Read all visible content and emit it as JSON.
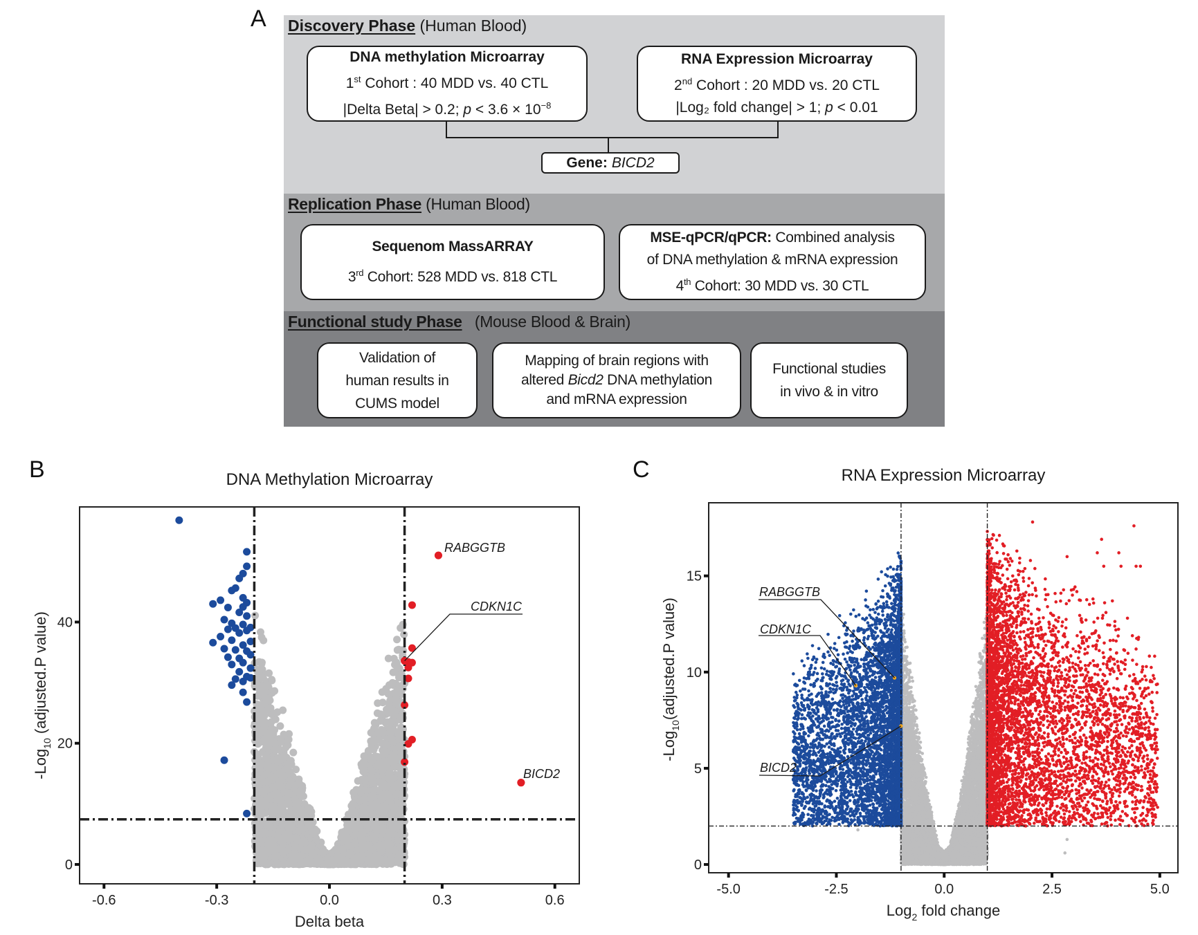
{
  "panel_labels": {
    "a": "A",
    "b": "B",
    "c": "C"
  },
  "flowchart": {
    "discovery": {
      "title": "Discovery Phase",
      "subtitle": "(Human Blood)",
      "methylation_box": {
        "title": "DNA methylation Microarray",
        "cohort_ordinal": "1",
        "cohort_sup": "st",
        "cohort_text": " Cohort : 40 MDD vs. 40 CTL",
        "criteria_prefix": "|Delta Beta| > 0.2; ",
        "criteria_p": "p",
        "criteria_suffix": " < 3.6 × 10",
        "criteria_exp": "−8"
      },
      "rna_box": {
        "title": "RNA Expression Microarray",
        "cohort_ordinal": "2",
        "cohort_sup": "nd",
        "cohort_text": " Cohort : 20 MDD vs. 20 CTL",
        "criteria_prefix": "|Log₂ fold change| > 1; ",
        "criteria_p": "p",
        "criteria_suffix": " < 0.01"
      },
      "gene_label": "Gene:",
      "gene_name": "BICD2"
    },
    "replication": {
      "title": "Replication Phase",
      "subtitle": "(Human Blood)",
      "sequenom_box": {
        "title": "Sequenom MassARRAY",
        "cohort_ordinal": "3",
        "cohort_sup": "rd",
        "cohort_text": " Cohort: 528 MDD vs. 818 CTL"
      },
      "qpcr_box": {
        "title": "MSE-qPCR/qPCR:",
        "line1_rest": " Combined analysis",
        "line2": "of DNA methylation & mRNA expression",
        "cohort_ordinal": "4",
        "cohort_sup": "th",
        "cohort_text": " Cohort: 30 MDD vs. 30 CTL"
      }
    },
    "functional": {
      "title": "Functional study Phase",
      "subtitle": "(Mouse Blood & Brain)",
      "boxes": [
        {
          "lines": [
            "Validation of",
            "human results in",
            "CUMS model"
          ]
        },
        {
          "line1": "Mapping of brain regions with",
          "line2_pre": "altered ",
          "line2_gene": "Bicd2",
          "line2_post": " DNA methylation",
          "line3": "and mRNA expression"
        },
        {
          "lines": [
            "Functional studies",
            "in vivo & in vitro"
          ]
        }
      ]
    }
  },
  "chart_data": [
    {
      "id": "B",
      "type": "scatter",
      "title": "DNA Methylation Microarray",
      "xlabel": "Delta beta",
      "ylabel_prefix": "-Log",
      "ylabel_sub": "10",
      "ylabel_suffix": " (adjusted.P value)",
      "xlim": [
        -0.665,
        0.665
      ],
      "ylim": [
        -3.2,
        59
      ],
      "xticks": [
        -0.6,
        -0.3,
        0.0,
        0.3,
        0.6
      ],
      "xtick_labels": [
        "-0.6",
        "-0.3",
        "0.0",
        "0.3",
        "0.6"
      ],
      "yticks": [
        0,
        20,
        40
      ],
      "ytick_labels": [
        "0",
        "20",
        "40"
      ],
      "thresholds": {
        "x": [
          -0.2,
          0.2
        ],
        "y": 7.44
      },
      "grid": false,
      "colors": {
        "down": "#1c4b9c",
        "up": "#e21e25",
        "ns": "#bdbdbe",
        "highlight": "#e21e25"
      },
      "background_cloud": {
        "shape": "volcano",
        "x_spread": 0.2,
        "y_max": 46,
        "density": "very high"
      },
      "series": [
        {
          "name": "hypomethylated",
          "color": "#1c4b9c",
          "points": [
            [
              -0.4,
              56.8
            ],
            [
              -0.22,
              51.6
            ],
            [
              -0.22,
              49.2
            ],
            [
              -0.23,
              48.0
            ],
            [
              -0.24,
              47.2
            ],
            [
              -0.25,
              45.6
            ],
            [
              -0.26,
              45.2
            ],
            [
              -0.23,
              44.0
            ],
            [
              -0.22,
              43.2
            ],
            [
              -0.31,
              43.0
            ],
            [
              -0.29,
              43.6
            ],
            [
              -0.27,
              42.4
            ],
            [
              -0.23,
              42.5
            ],
            [
              -0.24,
              41.6
            ],
            [
              -0.22,
              41.0
            ],
            [
              -0.28,
              40.4
            ],
            [
              -0.26,
              39.8
            ],
            [
              -0.25,
              39.0
            ],
            [
              -0.23,
              39.6
            ],
            [
              -0.21,
              39.1
            ],
            [
              -0.27,
              38.8
            ],
            [
              -0.24,
              38.2
            ],
            [
              -0.22,
              38.6
            ],
            [
              -0.29,
              37.6
            ],
            [
              -0.26,
              37.0
            ],
            [
              -0.23,
              36.2
            ],
            [
              -0.21,
              36.8
            ],
            [
              -0.31,
              36.6
            ],
            [
              -0.28,
              35.6
            ],
            [
              -0.25,
              35.4
            ],
            [
              -0.22,
              35.2
            ],
            [
              -0.27,
              34.2
            ],
            [
              -0.24,
              34.0
            ],
            [
              -0.21,
              34.6
            ],
            [
              -0.26,
              33.0
            ],
            [
              -0.23,
              33.3
            ],
            [
              -0.21,
              32.4
            ],
            [
              -0.24,
              31.8
            ],
            [
              -0.22,
              31.0
            ],
            [
              -0.25,
              30.6
            ],
            [
              -0.23,
              30.2
            ],
            [
              -0.21,
              30.8
            ],
            [
              -0.26,
              29.6
            ],
            [
              -0.23,
              28.4
            ],
            [
              -0.22,
              26.8
            ],
            [
              -0.28,
              17.2
            ],
            [
              -0.22,
              8.4
            ]
          ]
        },
        {
          "name": "hypermethylated",
          "color": "#e21e25",
          "points": [
            [
              0.29,
              51.0
            ],
            [
              0.22,
              42.8
            ],
            [
              0.22,
              35.7
            ],
            [
              0.2,
              33.6
            ],
            [
              0.21,
              33.4
            ],
            [
              0.22,
              33.3
            ],
            [
              0.21,
              32.5
            ],
            [
              0.21,
              30.7
            ],
            [
              0.2,
              26.3
            ],
            [
              0.22,
              20.6
            ],
            [
              0.21,
              19.9
            ],
            [
              0.2,
              16.9
            ],
            [
              0.51,
              13.5
            ]
          ]
        }
      ],
      "annotations": [
        {
          "label": "RABGGTB",
          "x": 0.29,
          "y": 51.0,
          "leader": false
        },
        {
          "label": "CDKN1C",
          "x": 0.2,
          "y": 33.6,
          "leader": true
        },
        {
          "label": "BICD2",
          "x": 0.51,
          "y": 13.5,
          "leader": false
        }
      ]
    },
    {
      "id": "C",
      "type": "scatter",
      "title": "RNA Expression Microarray",
      "xlabel_prefix": "Log",
      "xlabel_sub": "2",
      "xlabel_suffix": " fold change",
      "ylabel_prefix": "-Log",
      "ylabel_sub": "10",
      "ylabel_suffix": "(adjusted.P value)",
      "xlim": [
        -5.46,
        5.42
      ],
      "ylim": [
        -0.43,
        18.8
      ],
      "xticks": [
        -5.0,
        -2.5,
        0.0,
        2.5,
        5.0
      ],
      "xtick_labels": [
        "-5.0",
        "-2.5",
        "0.0",
        "2.5",
        "5.0"
      ],
      "yticks": [
        0,
        5,
        10,
        15
      ],
      "ytick_labels": [
        "0",
        "5",
        "10",
        "15"
      ],
      "thresholds": {
        "x": [
          -1,
          1
        ],
        "y": 2
      },
      "grid": false,
      "colors": {
        "down": "#1c4b9c",
        "up": "#e21e25",
        "ns": "#bdbdbe",
        "highlight": "#f5a81c"
      },
      "background_cloud": {
        "shape": "volcano",
        "x_spread": 1.0,
        "y_max": 14.5,
        "density": "very high"
      },
      "series": [
        {
          "name": "down-regulated",
          "color": "#1c4b9c",
          "x_range": [
            -3.5,
            -1.0
          ],
          "y_range": [
            2.0,
            16.5
          ],
          "density": "very high"
        },
        {
          "name": "up-regulated",
          "color": "#e21e25",
          "x_range": [
            1.0,
            4.95
          ],
          "y_range": [
            2.0,
            17.8
          ],
          "density": "high"
        },
        {
          "name": "up-regulated outliers",
          "color": "#e21e25",
          "points": [
            [
              2.05,
              17.8
            ],
            [
              4.4,
              17.6
            ],
            [
              3.65,
              16.9
            ],
            [
              4.05,
              16.2
            ],
            [
              2.85,
              16.0
            ],
            [
              3.55,
              16.2
            ],
            [
              2.0,
              15.8
            ],
            [
              3.7,
              15.5
            ],
            [
              4.1,
              15.5
            ],
            [
              4.45,
              15.5
            ],
            [
              4.55,
              15.5
            ],
            [
              3.0,
              14.3
            ],
            [
              3.45,
              13.8
            ],
            [
              3.72,
              13.6
            ],
            [
              3.9,
              13.7
            ],
            [
              3.2,
              12.6
            ],
            [
              3.56,
              12.8
            ],
            [
              3.67,
              12.8
            ],
            [
              4.25,
              12.8
            ],
            [
              2.65,
              12.1
            ],
            [
              3.6,
              11.8
            ],
            [
              3.2,
              11.5
            ],
            [
              4.0,
              11.0
            ],
            [
              4.2,
              10.4
            ],
            [
              4.5,
              11.7
            ],
            [
              4.45,
              11.2
            ],
            [
              3.05,
              10.4
            ],
            [
              3.55,
              10.3
            ],
            [
              4.3,
              9.8
            ],
            [
              2.9,
              10.5
            ],
            [
              3.0,
              9.8
            ],
            [
              3.32,
              9.0
            ],
            [
              3.5,
              8.2
            ],
            [
              2.8,
              8.5
            ],
            [
              3.4,
              7.1
            ],
            [
              3.6,
              6.8
            ],
            [
              4.35,
              7.6
            ],
            [
              3.7,
              6.4
            ],
            [
              3.78,
              6.1
            ],
            [
              2.75,
              6.8
            ],
            [
              2.78,
              2.1
            ]
          ]
        },
        {
          "name": "down-regulated outliers",
          "color": "#1c4b9c",
          "points": [
            [
              -3.3,
              8.8
            ],
            [
              -3.25,
              7.6
            ],
            [
              -3.05,
              8.3
            ],
            [
              -2.6,
              6.8
            ],
            [
              -2.65,
              4.7
            ],
            [
              -2.5,
              4.8
            ],
            [
              -2.4,
              3.2
            ],
            [
              -2.5,
              2.3
            ],
            [
              -2.0,
              2.2
            ]
          ]
        },
        {
          "name": "not significant outliers",
          "color": "#bdbdbe",
          "points": [
            [
              2.85,
              1.3
            ],
            [
              2.8,
              0.6
            ],
            [
              -2.0,
              1.8
            ]
          ]
        }
      ],
      "annotations": [
        {
          "label": "RABGGTB",
          "x": -1.15,
          "y": 9.7,
          "leader": true
        },
        {
          "label": "CDKN1C",
          "x": -2.05,
          "y": 9.3,
          "leader": true
        },
        {
          "label": "BICD2",
          "x": -1.0,
          "y": 7.2,
          "leader": true
        }
      ]
    }
  ]
}
